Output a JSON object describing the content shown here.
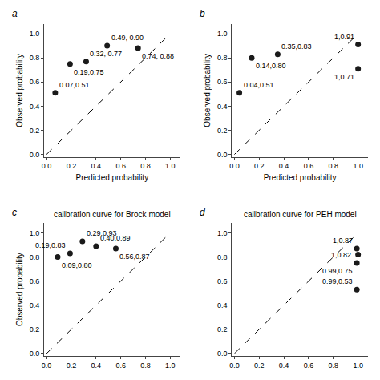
{
  "chart_data": [
    {
      "type": "scatter",
      "annotations": [
        {
          "text": "a"
        }
      ],
      "xlabel": "Predicted probability",
      "ylabel": "Observed probability",
      "xlim": [
        -0.02,
        1.08
      ],
      "ylim": [
        -0.02,
        1.08
      ],
      "xticks": [
        {
          "value": 0,
          "label": "0.0"
        },
        0.2,
        0.4,
        0.6,
        0.8,
        {
          "value": 1,
          "label": "1.0"
        }
      ],
      "yticks": [
        {
          "value": 0,
          "label": "0.0"
        },
        0.2,
        0.4,
        0.6,
        0.8,
        {
          "value": 1,
          "label": "1.0"
        }
      ],
      "grid": false,
      "series": [
        {
          "type": "line",
          "line_style": "dashed",
          "color": "#000000",
          "x": [
            0,
            1
          ],
          "values": [
            0,
            1
          ]
        },
        {
          "type": "scatter",
          "marker": "circle",
          "color": "#1a1a1a",
          "data_labels": true,
          "x": [
            0.07,
            0.19,
            0.32,
            0.49,
            0.74
          ],
          "values": [
            0.51,
            0.75,
            0.77,
            0.9,
            0.88
          ],
          "value_labels": [
            "0.07,0.51",
            "0.19,0.75",
            "0.32, 0.77",
            "0.49, 0.90",
            "0.74, 0.88"
          ]
        }
      ]
    },
    {
      "type": "scatter",
      "annotations": [
        {
          "text": "b"
        }
      ],
      "xlabel": "Predicted probability",
      "ylabel": "Observed probability",
      "xlim": [
        -0.02,
        1.08
      ],
      "ylim": [
        -0.02,
        1.08
      ],
      "xticks": [
        {
          "value": 0,
          "label": "0.0"
        },
        0.2,
        0.4,
        0.6,
        0.8,
        {
          "value": 1,
          "label": "1.0"
        }
      ],
      "yticks": [
        {
          "value": 0,
          "label": "0.0"
        },
        0.2,
        0.4,
        0.6,
        0.8,
        {
          "value": 1,
          "label": "1.0"
        }
      ],
      "grid": false,
      "series": [
        {
          "type": "line",
          "line_style": "dashed",
          "color": "#000000",
          "x": [
            0,
            1
          ],
          "values": [
            0,
            1
          ]
        },
        {
          "type": "scatter",
          "marker": "circle",
          "color": "#1a1a1a",
          "data_labels": true,
          "x": [
            0.04,
            0.14,
            0.35,
            1.0,
            1.0
          ],
          "values": [
            0.51,
            0.8,
            0.83,
            0.91,
            0.71
          ],
          "value_labels": [
            "0.04,0.51",
            "0.14,0.80",
            "0.35,0.83",
            "1,0.91",
            "1,0.71"
          ]
        }
      ]
    },
    {
      "type": "scatter",
      "title": "calibration curve for Brock model",
      "annotations": [
        {
          "text": "c"
        }
      ],
      "ylabel": "Observed probability",
      "xlim": [
        -0.02,
        1.08
      ],
      "ylim": [
        -0.02,
        1.08
      ],
      "xticks": [
        {
          "value": 0,
          "label": "0.0"
        },
        0.2,
        0.4,
        0.6,
        0.8,
        {
          "value": 1,
          "label": "1.0"
        }
      ],
      "yticks": [
        {
          "value": 0,
          "label": "0.0"
        },
        0.2,
        0.4,
        0.6,
        0.8,
        {
          "value": 1,
          "label": "1.0"
        }
      ],
      "grid": false,
      "series": [
        {
          "type": "line",
          "line_style": "dashed",
          "color": "#000000",
          "x": [
            0,
            1
          ],
          "values": [
            0,
            1
          ]
        },
        {
          "type": "scatter",
          "marker": "circle",
          "color": "#1a1a1a",
          "data_labels": true,
          "x": [
            0.09,
            0.19,
            0.29,
            0.4,
            0.56
          ],
          "values": [
            0.8,
            0.83,
            0.93,
            0.89,
            0.87
          ],
          "value_labels": [
            "0.09,0.80",
            "0.19,0.83",
            "0.29,0.93",
            "0.40,0.89",
            "0.56,0.87"
          ]
        }
      ]
    },
    {
      "type": "scatter",
      "title": "calibration curve for PEH model",
      "annotations": [
        {
          "text": "d"
        }
      ],
      "xlim": [
        -0.02,
        1.08
      ],
      "ylim": [
        -0.02,
        1.08
      ],
      "xticks": [
        {
          "value": 0,
          "label": "0.0"
        },
        0.2,
        0.4,
        0.6,
        0.8,
        {
          "value": 1,
          "label": "1.0"
        }
      ],
      "yticks": [
        {
          "value": 0,
          "label": "0.0"
        },
        0.2,
        0.4,
        0.6,
        0.8,
        {
          "value": 1,
          "label": "1.0"
        }
      ],
      "grid": false,
      "series": [
        {
          "type": "line",
          "line_style": "dashed",
          "color": "#000000",
          "x": [
            0,
            1
          ],
          "values": [
            0,
            1
          ]
        },
        {
          "type": "scatter",
          "marker": "circle",
          "color": "#1a1a1a",
          "data_labels": true,
          "x": [
            0.99,
            1.0,
            0.99,
            0.99
          ],
          "values": [
            0.87,
            0.82,
            0.75,
            0.53
          ],
          "value_labels": [
            "1,0.87",
            "1,0.82",
            "0.99,0.75",
            "0.99,0.53"
          ]
        }
      ]
    }
  ]
}
